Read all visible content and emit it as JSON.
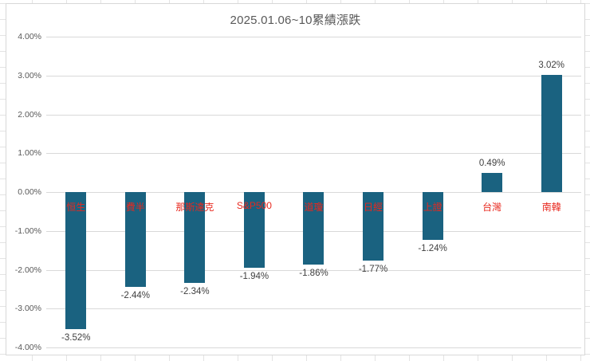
{
  "chart_title": "2025.01.06~10累績漲跌",
  "colors": {
    "bar": "#1a6280",
    "category_label": "#e8281e",
    "gridline": "#d9d9d9",
    "axis_text": "#595959",
    "value_text": "#404040",
    "sheet_gridline": "#e3e3e3",
    "chart_border": "#d8d8d8"
  },
  "chart_data": {
    "type": "bar",
    "title": "2025.01.06~10累績漲跌",
    "categories": [
      "恒生",
      "費半",
      "那斯達克",
      "S&P500",
      "道瓊",
      "日經",
      "上證",
      "台灣",
      "南韓"
    ],
    "values": [
      -3.52,
      -2.44,
      -2.34,
      -1.94,
      -1.86,
      -1.77,
      -1.24,
      0.49,
      3.02
    ],
    "value_labels": [
      "-3.52%",
      "-2.44%",
      "-2.34%",
      "-1.94%",
      "-1.86%",
      "-1.77%",
      "-1.24%",
      "0.49%",
      "3.02%"
    ],
    "xlabel": "",
    "ylabel": "",
    "ylim": [
      -4,
      4
    ],
    "ytick_step": 1,
    "ytick_labels": [
      "4.00%",
      "3.00%",
      "2.00%",
      "1.00%",
      "0.00%",
      "-1.00%",
      "-2.00%",
      "-3.00%",
      "-4.00%"
    ],
    "grid": true,
    "legend_position": "none",
    "bar_color": "#1a6280",
    "category_label_color": "#e8281e",
    "category_label_position": "below-zero-line",
    "value_label_position": "outside-end"
  }
}
